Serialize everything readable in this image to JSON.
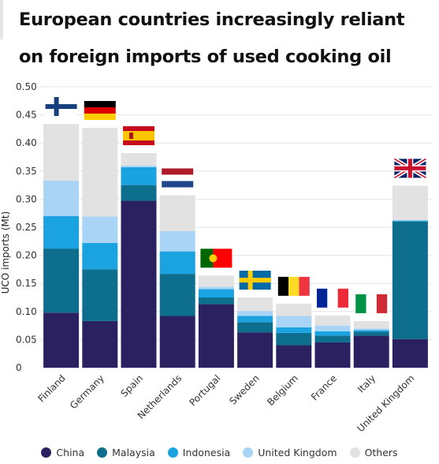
{
  "title": "European countries increasingly reliant on foreign imports of used cooking oil",
  "chart_data": {
    "type": "bar",
    "stacked": true,
    "title": "European countries increasingly reliant on foreign imports of used cooking oil",
    "ylabel": "UCO imports (Mt)",
    "xlabel": "",
    "ylim": [
      0,
      0.5
    ],
    "yticks": [
      "0",
      "0.05",
      "0.10",
      "0.15",
      "0.20",
      "0.25",
      "0.30",
      "0.35",
      "0.40",
      "0.45",
      "0.50"
    ],
    "grid": true,
    "legend_position": "bottom",
    "categories": [
      "Finland",
      "Germany",
      "Spain",
      "Netherlands",
      "Portugal",
      "Sweden",
      "Belgium",
      "France",
      "Italy",
      "United Kingdom"
    ],
    "flags": [
      "finland-flag",
      "germany-flag",
      "spain-flag",
      "netherlands-flag",
      "portugal-flag",
      "sweden-flag",
      "belgium-flag",
      "france-flag",
      "italy-flag",
      "united-kingdom-flag"
    ],
    "series": [
      {
        "name": "China",
        "color": "#2b2160",
        "values": [
          0.098,
          0.083,
          0.297,
          0.092,
          0.113,
          0.063,
          0.04,
          0.045,
          0.057,
          0.051
        ]
      },
      {
        "name": "Malaysia",
        "color": "#0e6e8e",
        "values": [
          0.114,
          0.092,
          0.028,
          0.075,
          0.012,
          0.018,
          0.022,
          0.012,
          0.007,
          0.209
        ]
      },
      {
        "name": "Indonesia",
        "color": "#1aa3e0",
        "values": [
          0.058,
          0.047,
          0.032,
          0.04,
          0.015,
          0.011,
          0.01,
          0.008,
          0.003,
          0.002
        ]
      },
      {
        "name": "United Kingdom",
        "color": "#a9d4f5",
        "values": [
          0.063,
          0.047,
          0.003,
          0.036,
          0.004,
          0.009,
          0.02,
          0.01,
          0.003,
          0.0
        ]
      },
      {
        "name": "Others",
        "color": "#e2e2e2",
        "values": [
          0.101,
          0.158,
          0.022,
          0.064,
          0.02,
          0.024,
          0.022,
          0.018,
          0.013,
          0.062
        ]
      }
    ]
  }
}
